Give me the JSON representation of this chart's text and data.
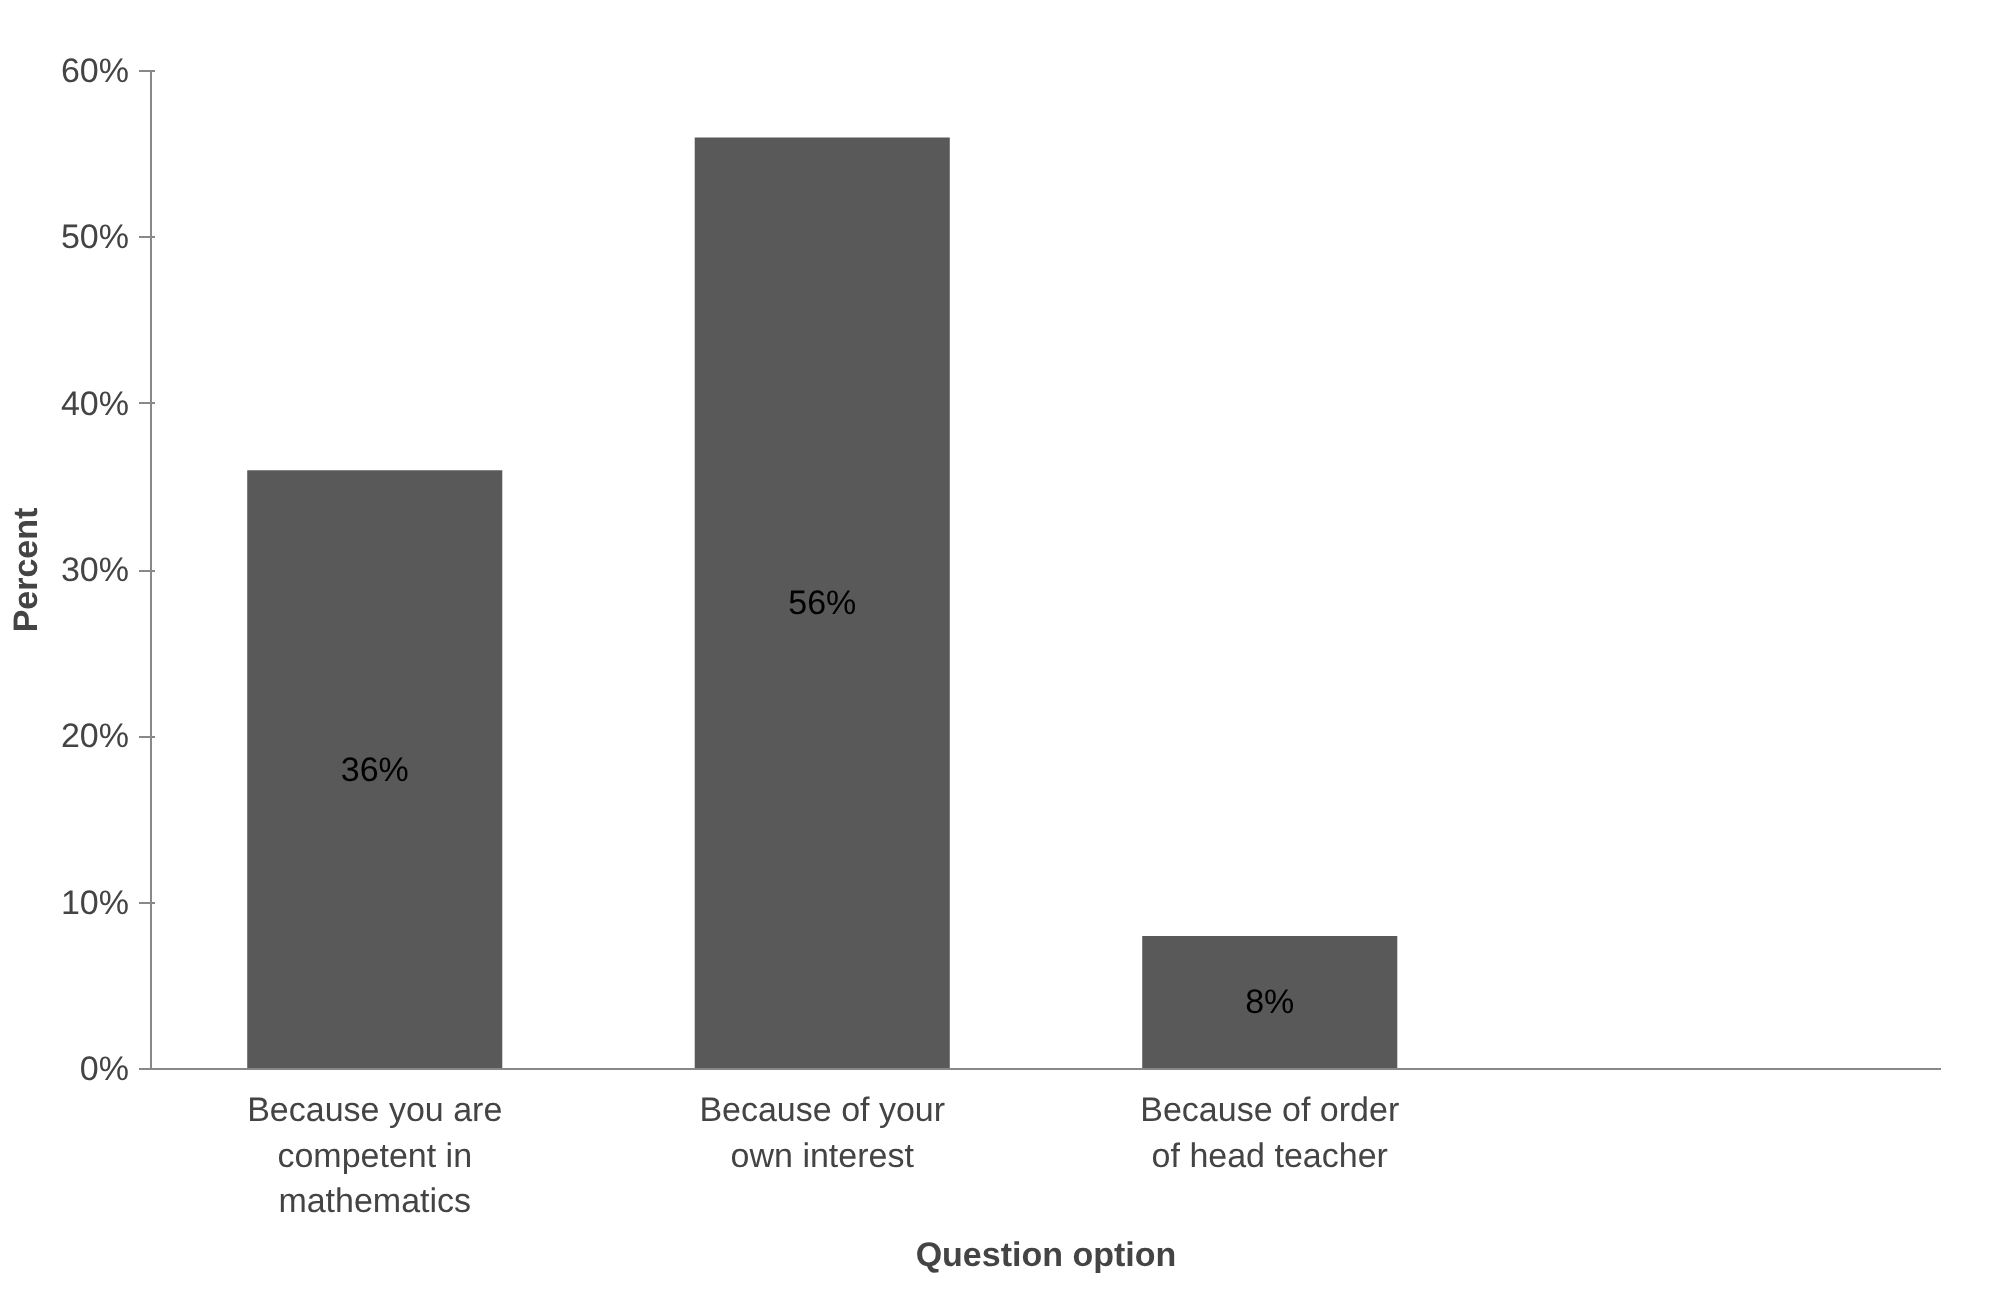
{
  "chart_data": {
    "type": "bar",
    "xlabel": "Question option",
    "ylabel": "Percent",
    "categories": [
      "Because you are competent in mathematics",
      "Because of your own interest",
      "Because of order of head teacher",
      null
    ],
    "values": [
      36,
      56,
      8,
      null
    ],
    "value_labels": [
      "36%",
      "56%",
      "8%",
      null
    ],
    "color": "#595959",
    "ylim": [
      0,
      60
    ],
    "yticks": [
      {
        "value": 0,
        "label": "0%"
      },
      {
        "value": 10,
        "label": "10%"
      },
      {
        "value": 20,
        "label": "20%"
      },
      {
        "value": 30,
        "label": "30%"
      },
      {
        "value": 40,
        "label": "40%"
      },
      {
        "value": 50,
        "label": "50%"
      },
      {
        "value": 60,
        "label": "60%"
      }
    ],
    "grid": false
  }
}
